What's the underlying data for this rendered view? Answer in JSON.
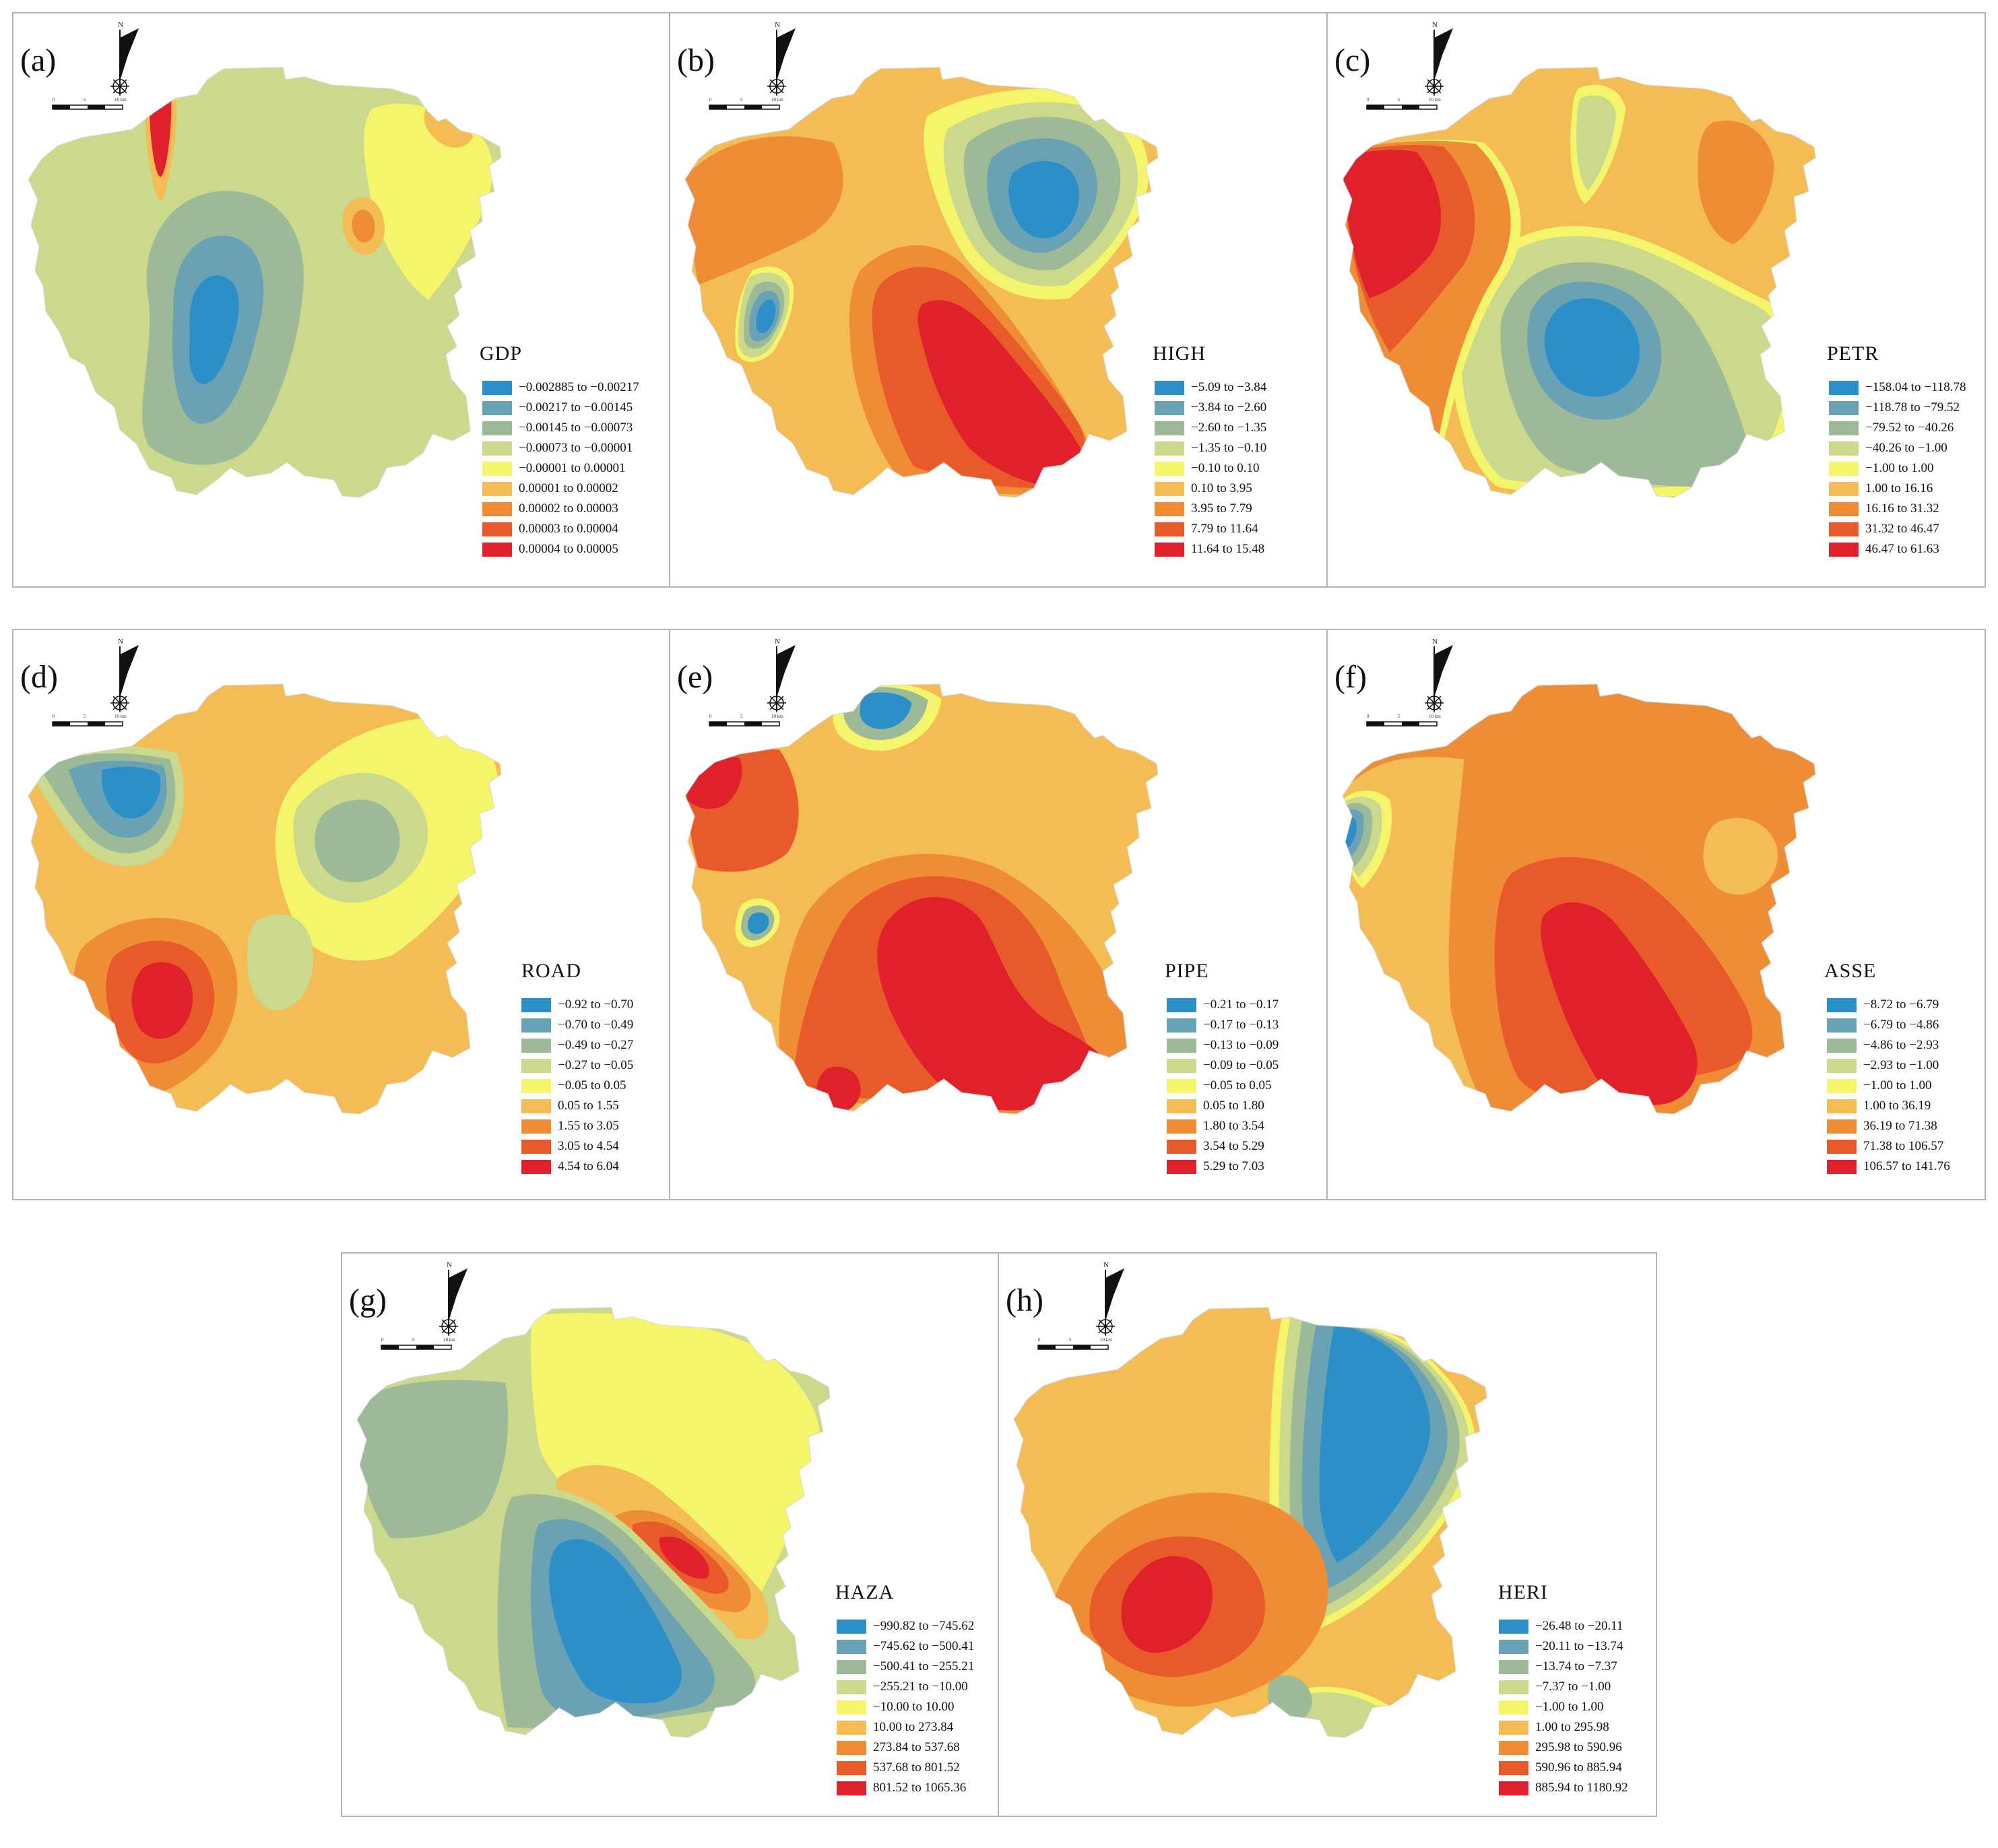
{
  "north_glyph": "N",
  "scale_text": {
    "start": "0",
    "mid": "5",
    "end": "10 km"
  },
  "palette": [
    "#2c8fc7",
    "#6aa2b5",
    "#9dba98",
    "#cbd98c",
    "#f5f56c",
    "#f4bc55",
    "#ef8d37",
    "#e85a2a",
    "#e0202a"
  ],
  "panels": [
    {
      "id": "a",
      "label": "(a)",
      "title": "GDP",
      "legend": [
        "−0.002885 to −0.00217",
        "−0.00217 to −0.00145",
        "−0.00145 to −0.00073",
        "−0.00073 to −0.00001",
        "−0.00001 to 0.00001",
        "0.00001 to 0.00002",
        "0.00002 to 0.00003",
        "0.00003 to 0.00004",
        "0.00004 to 0.00005"
      ]
    },
    {
      "id": "b",
      "label": "(b)",
      "title": "HIGH",
      "legend": [
        "−5.09 to −3.84",
        "−3.84 to −2.60",
        "−2.60 to −1.35",
        "−1.35 to −0.10",
        "−0.10 to 0.10",
        "0.10 to 3.95",
        "3.95 to 7.79",
        "7.79 to 11.64",
        "11.64  to 15.48"
      ]
    },
    {
      "id": "c",
      "label": "(c)",
      "title": "PETR",
      "legend": [
        "−158.04 to −118.78",
        "−118.78 to −79.52",
        "−79.52 to −40.26",
        "−40.26 to −1.00",
        "−1.00 to 1.00",
        "1.00 to 16.16",
        "16.16 to 31.32",
        "31.32 to 46.47",
        "46.47 to 61.63"
      ]
    },
    {
      "id": "d",
      "label": "(d)",
      "title": "ROAD",
      "legend": [
        "−0.92 to −0.70",
        "−0.70 to −0.49",
        "−0.49 to −0.27",
        "−0.27 to −0.05",
        "−0.05 to 0.05",
        "0.05 to 1.55",
        "1.55 to 3.05",
        "3.05 to 4.54",
        "4.54 to 6.04"
      ]
    },
    {
      "id": "e",
      "label": "(e)",
      "title": "PIPE",
      "legend": [
        "−0.21 to −0.17",
        "−0.17 to −0.13",
        "−0.13 to −0.09",
        "−0.09 to −0.05",
        "−0.05 to 0.05",
        "0.05 to 1.80",
        "1.80 to 3.54",
        "3.54 to 5.29",
        "5.29 to 7.03"
      ]
    },
    {
      "id": "f",
      "label": "(f)",
      "title": "ASSE",
      "legend": [
        "−8.72 to −6.79",
        "−6.79 to −4.86",
        "−4.86 to −2.93",
        "−2.93 to −1.00",
        "−1.00 to 1.00",
        "1.00 to 36.19",
        "36.19 to 71.38",
        "71.38 to 106.57",
        "106.57 to 141.76"
      ]
    },
    {
      "id": "g",
      "label": "(g)",
      "title": "HAZA",
      "legend": [
        "−990.82 to −745.62",
        "−745.62 to −500.41",
        "−500.41 to −255.21",
        "−255.21 to −10.00",
        "−10.00 to 10.00",
        "10.00 to 273.84",
        "273.84 to 537.68",
        "537.68 to 801.52",
        "801.52 to 1065.36"
      ]
    },
    {
      "id": "h",
      "label": "(h)",
      "title": "HERI",
      "legend": [
        "−26.48 to −20.11",
        "−20.11 to −13.74",
        "−13.74 to −7.37",
        "−7.37 to −1.00",
        "−1.00 to 1.00",
        "1.00 to 295.98",
        "295.98 to 590.96",
        "590.96 to 885.94",
        "885.94 to 1180.92"
      ]
    }
  ]
}
